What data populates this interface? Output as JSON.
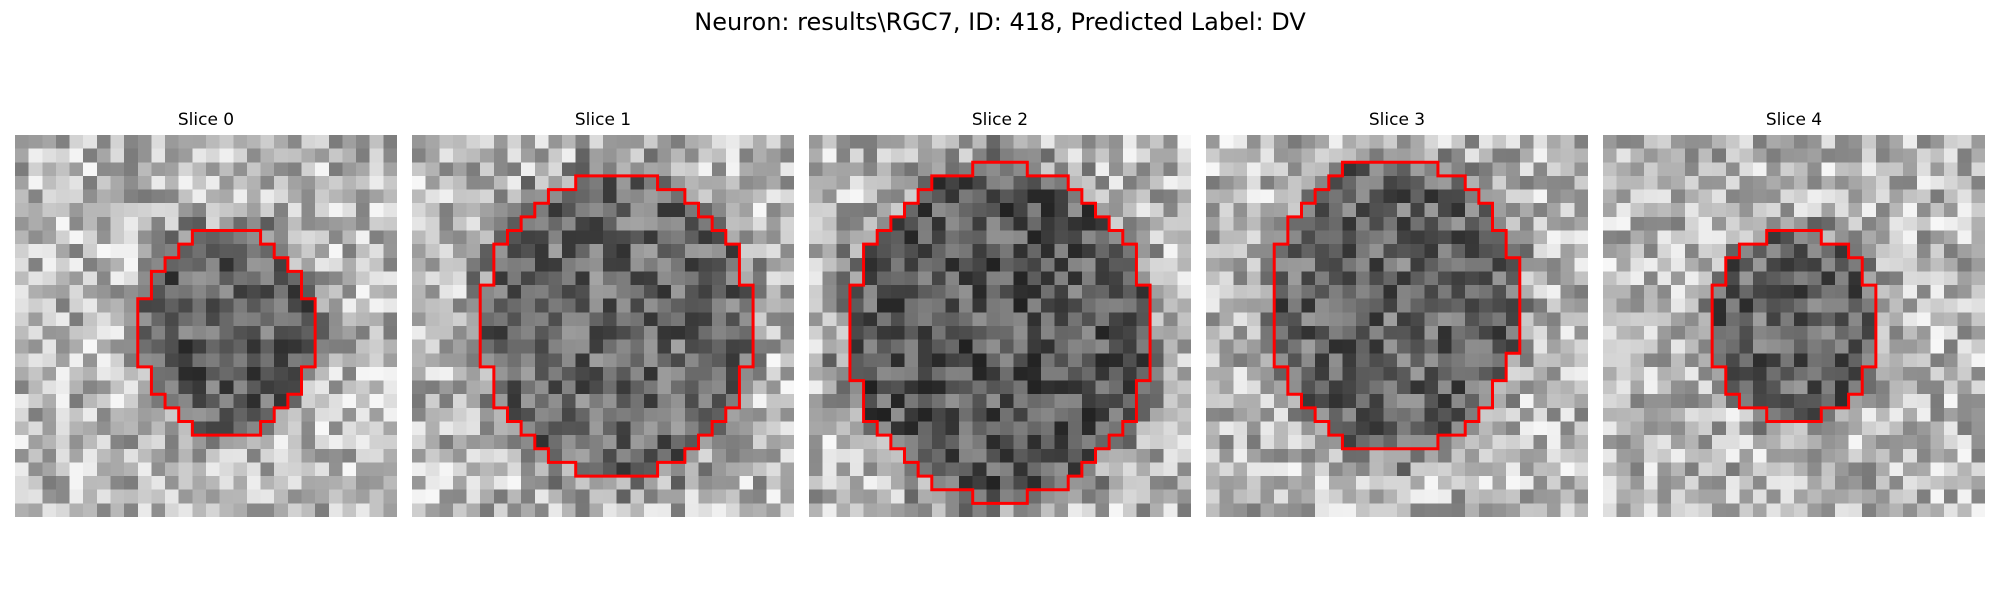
{
  "figure": {
    "title": "Neuron: results\\RGC7, ID: 418, Predicted Label: DV"
  },
  "contour_color": "#ff0000",
  "colormap": "gray",
  "grid_size": 28,
  "slices": [
    {
      "label": "Slice 0",
      "seed": 11,
      "darkness": 0.55,
      "cell": {
        "cx": 15.5,
        "cy": 14.5,
        "rx": 6.4,
        "ry": 7.6
      }
    },
    {
      "label": "Slice 1",
      "seed": 23,
      "darkness": 0.45,
      "cell": {
        "cx": 15.0,
        "cy": 14.0,
        "rx": 9.8,
        "ry": 11.2
      }
    },
    {
      "label": "Slice 2",
      "seed": 37,
      "darkness": 0.6,
      "cell": {
        "cx": 14.0,
        "cy": 14.5,
        "rx": 11.0,
        "ry": 12.2
      }
    },
    {
      "label": "Slice 3",
      "seed": 41,
      "darkness": 0.5,
      "cell": {
        "cx": 13.8,
        "cy": 12.5,
        "rx": 9.2,
        "ry": 10.8
      }
    },
    {
      "label": "Slice 4",
      "seed": 53,
      "darkness": 0.5,
      "cell": {
        "cx": 14.0,
        "cy": 14.0,
        "rx": 6.2,
        "ry": 7.0
      }
    }
  ]
}
